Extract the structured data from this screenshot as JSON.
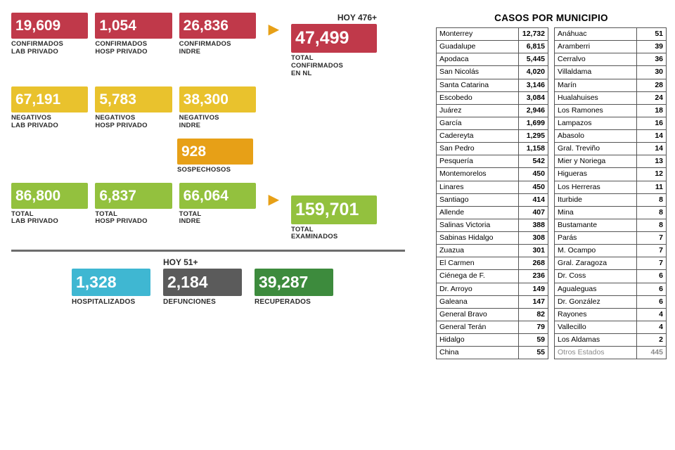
{
  "colors": {
    "red": "#c0394a",
    "yellow": "#e9c22d",
    "orange": "#e7a017",
    "green": "#93c13e",
    "blue": "#3fb7d2",
    "darkgray": "#5b5b5b",
    "darkgreen": "#3d8b3d"
  },
  "top_today": "HOY 476+",
  "row_conf": {
    "a": {
      "value": "19,609",
      "label": "CONFIRMADOS\nLAB PRIVADO"
    },
    "b": {
      "value": "1,054",
      "label": "CONFIRMADOS\nHOSP PRIVADO"
    },
    "c": {
      "value": "26,836",
      "label": "CONFIRMADOS\nINDRE"
    },
    "total": {
      "value": "47,499",
      "label": "TOTAL\nCONFIRMADOS\nEN NL"
    }
  },
  "row_neg": {
    "a": {
      "value": "67,191",
      "label": "NEGATIVOS\nLAB PRIVADO"
    },
    "b": {
      "value": "5,783",
      "label": "NEGATIVOS\nHOSP PRIVADO"
    },
    "c": {
      "value": "38,300",
      "label": "NEGATIVOS\nINDRE"
    }
  },
  "susp": {
    "value": "928",
    "label": "SOSPECHOSOS"
  },
  "row_tot": {
    "a": {
      "value": "86,800",
      "label": "TOTAL\nLAB PRIVADO"
    },
    "b": {
      "value": "6,837",
      "label": "TOTAL\nHOSP PRIVADO"
    },
    "c": {
      "value": "66,064",
      "label": "TOTAL\nINDRE"
    },
    "total": {
      "value": "159,701",
      "label": "TOTAL\nEXAMINADOS"
    }
  },
  "bot_today": "HOY 51+",
  "bottom": {
    "hosp": {
      "value": "1,328",
      "label": "HOSPITALIZADOS"
    },
    "def": {
      "value": "2,184",
      "label": "DEFUNCIONES"
    },
    "rec": {
      "value": "39,287",
      "label": "RECUPERADOS"
    }
  },
  "muni_title": "CASOS POR MUNICIPIO",
  "muni_left": [
    [
      "Monterrey",
      "12,732"
    ],
    [
      "Guadalupe",
      "6,815"
    ],
    [
      "Apodaca",
      "5,445"
    ],
    [
      "San Nicolás",
      "4,020"
    ],
    [
      "Santa Catarina",
      "3,146"
    ],
    [
      "Escobedo",
      "3,084"
    ],
    [
      "Juárez",
      "2,946"
    ],
    [
      "García",
      "1,699"
    ],
    [
      "Cadereyta",
      "1,295"
    ],
    [
      "San Pedro",
      "1,158"
    ],
    [
      "Pesquería",
      "542"
    ],
    [
      "Montemorelos",
      "450"
    ],
    [
      "Linares",
      "450"
    ],
    [
      "Santiago",
      "414"
    ],
    [
      "Allende",
      "407"
    ],
    [
      "Salinas Victoria",
      "388"
    ],
    [
      "Sabinas Hidalgo",
      "308"
    ],
    [
      "Zuazua",
      "301"
    ],
    [
      "El Carmen",
      "268"
    ],
    [
      "Ciénega de F.",
      "236"
    ],
    [
      "Dr. Arroyo",
      "149"
    ],
    [
      "Galeana",
      "147"
    ],
    [
      "General Bravo",
      "82"
    ],
    [
      "General Terán",
      "79"
    ],
    [
      "Hidalgo",
      "59"
    ],
    [
      "China",
      "55"
    ]
  ],
  "muni_right": [
    [
      "Anáhuac",
      "51"
    ],
    [
      "Aramberri",
      "39"
    ],
    [
      "Cerralvo",
      "36"
    ],
    [
      "Villaldama",
      "30"
    ],
    [
      "Marín",
      "28"
    ],
    [
      "Hualahuises",
      "24"
    ],
    [
      "Los Ramones",
      "18"
    ],
    [
      "Lampazos",
      "16"
    ],
    [
      "Abasolo",
      "14"
    ],
    [
      "Gral. Treviño",
      "14"
    ],
    [
      "Mier y Noriega",
      "13"
    ],
    [
      "Higueras",
      "12"
    ],
    [
      "Los Herreras",
      "11"
    ],
    [
      "Iturbide",
      "8"
    ],
    [
      "Mina",
      "8"
    ],
    [
      "Bustamante",
      "8"
    ],
    [
      "Parás",
      "7"
    ],
    [
      "M. Ocampo",
      "7"
    ],
    [
      "Gral. Zaragoza",
      "7"
    ],
    [
      "Dr. Coss",
      "6"
    ],
    [
      "Agualeguas",
      "6"
    ],
    [
      "Dr. González",
      "6"
    ],
    [
      "Rayones",
      "4"
    ],
    [
      "Vallecillo",
      "4"
    ],
    [
      "Los Aldamas",
      "2"
    ],
    [
      "Otros Estados",
      "445"
    ]
  ]
}
